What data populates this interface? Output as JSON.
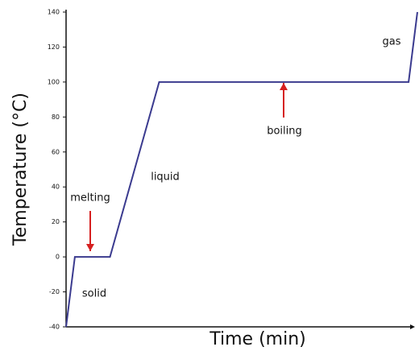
{
  "chart_data": {
    "type": "line",
    "x_label": "Time (min)",
    "y_label": "Temperature (°C)",
    "x": [
      0,
      2.5,
      12.5,
      26.5,
      97.5,
      100
    ],
    "series": [
      {
        "color": "#3b3b8f",
        "values": [
          -40,
          0,
          0,
          100,
          100,
          140
        ]
      }
    ],
    "xlim": [
      0,
      100
    ],
    "ylim": [
      -40,
      140
    ],
    "yticks": [
      -40,
      -20,
      0,
      20,
      40,
      60,
      80,
      100,
      120,
      140
    ],
    "annotations": [
      "melting",
      "solid",
      "liquid",
      "boiling",
      "gas"
    ],
    "arrow_color": "#d62020",
    "grid": false
  }
}
